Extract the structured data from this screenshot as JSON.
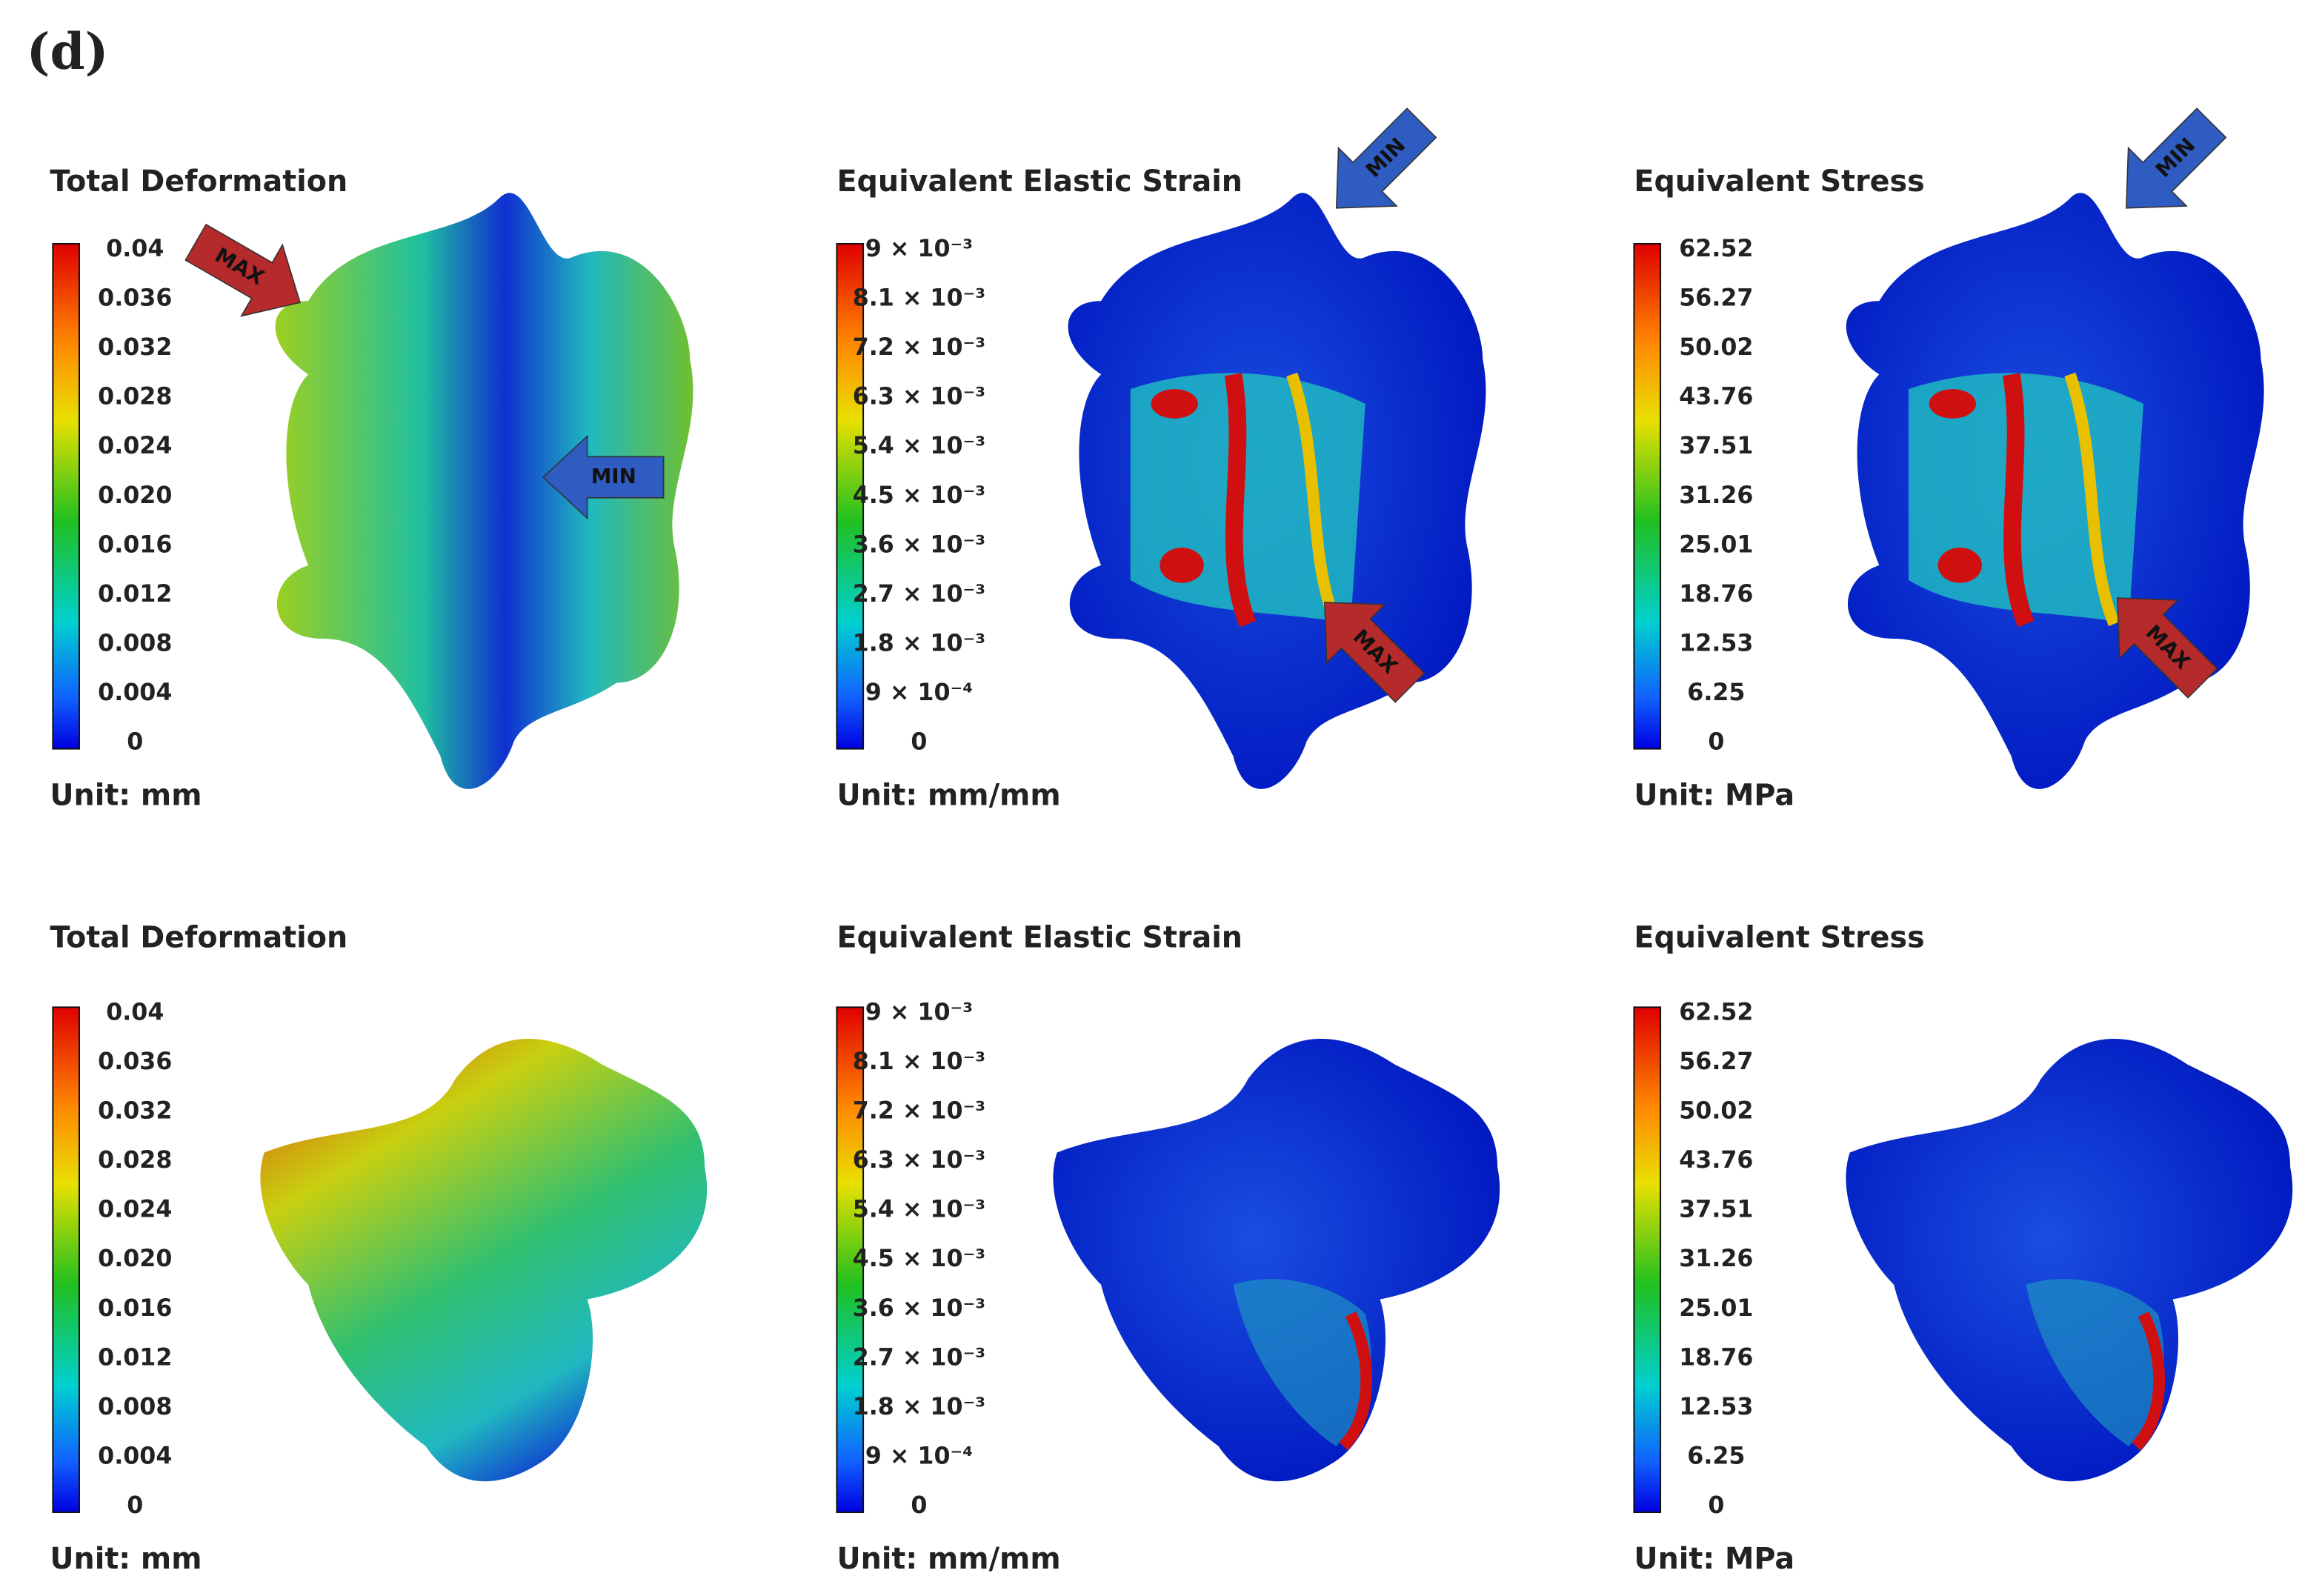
{
  "figure_label": "(d)",
  "panels": [
    {
      "title": "Total Deformation",
      "legend": [
        "0.04",
        "0.036",
        "0.032",
        "0.028",
        "0.024",
        "0.020",
        "0.016",
        "0.012",
        "0.008",
        "0.004",
        "0"
      ],
      "unit": "Unit: mm",
      "arrows": [
        "MAX",
        "MIN"
      ]
    },
    {
      "title": "Equivalent Elastic Strain",
      "legend": [
        "9 × 10⁻³",
        "8.1 × 10⁻³",
        "7.2 × 10⁻³",
        "6.3 × 10⁻³",
        "5.4 × 10⁻³",
        "4.5 × 10⁻³",
        "3.6 × 10⁻³",
        "2.7 × 10⁻³",
        "1.8 × 10⁻³",
        "9 × 10⁻⁴",
        "0"
      ],
      "unit": "Unit: mm/mm",
      "arrows": [
        "MIN",
        "MAX"
      ]
    },
    {
      "title": "Equivalent Stress",
      "legend": [
        "62.52",
        "56.27",
        "50.02",
        "43.76",
        "37.51",
        "31.26",
        "25.01",
        "18.76",
        "12.53",
        "6.25",
        "0"
      ],
      "unit": "Unit: MPa",
      "arrows": [
        "MIN",
        "MAX"
      ]
    },
    {
      "title": "Total Deformation",
      "legend": [
        "0.04",
        "0.036",
        "0.032",
        "0.028",
        "0.024",
        "0.020",
        "0.016",
        "0.012",
        "0.008",
        "0.004",
        "0"
      ],
      "unit": "Unit: mm"
    },
    {
      "title": "Equivalent Elastic Strain",
      "legend": [
        "9 × 10⁻³",
        "8.1 × 10⁻³",
        "7.2 × 10⁻³",
        "6.3 × 10⁻³",
        "5.4 × 10⁻³",
        "4.5 × 10⁻³",
        "3.6 × 10⁻³",
        "2.7 × 10⁻³",
        "1.8 × 10⁻³",
        "9 × 10⁻⁴",
        "0"
      ],
      "unit": "Unit: mm/mm"
    },
    {
      "title": "Equivalent Stress",
      "legend": [
        "62.52",
        "56.27",
        "50.02",
        "43.76",
        "37.51",
        "31.26",
        "25.01",
        "18.76",
        "12.53",
        "6.25",
        "0"
      ],
      "unit": "Unit: MPa"
    }
  ]
}
